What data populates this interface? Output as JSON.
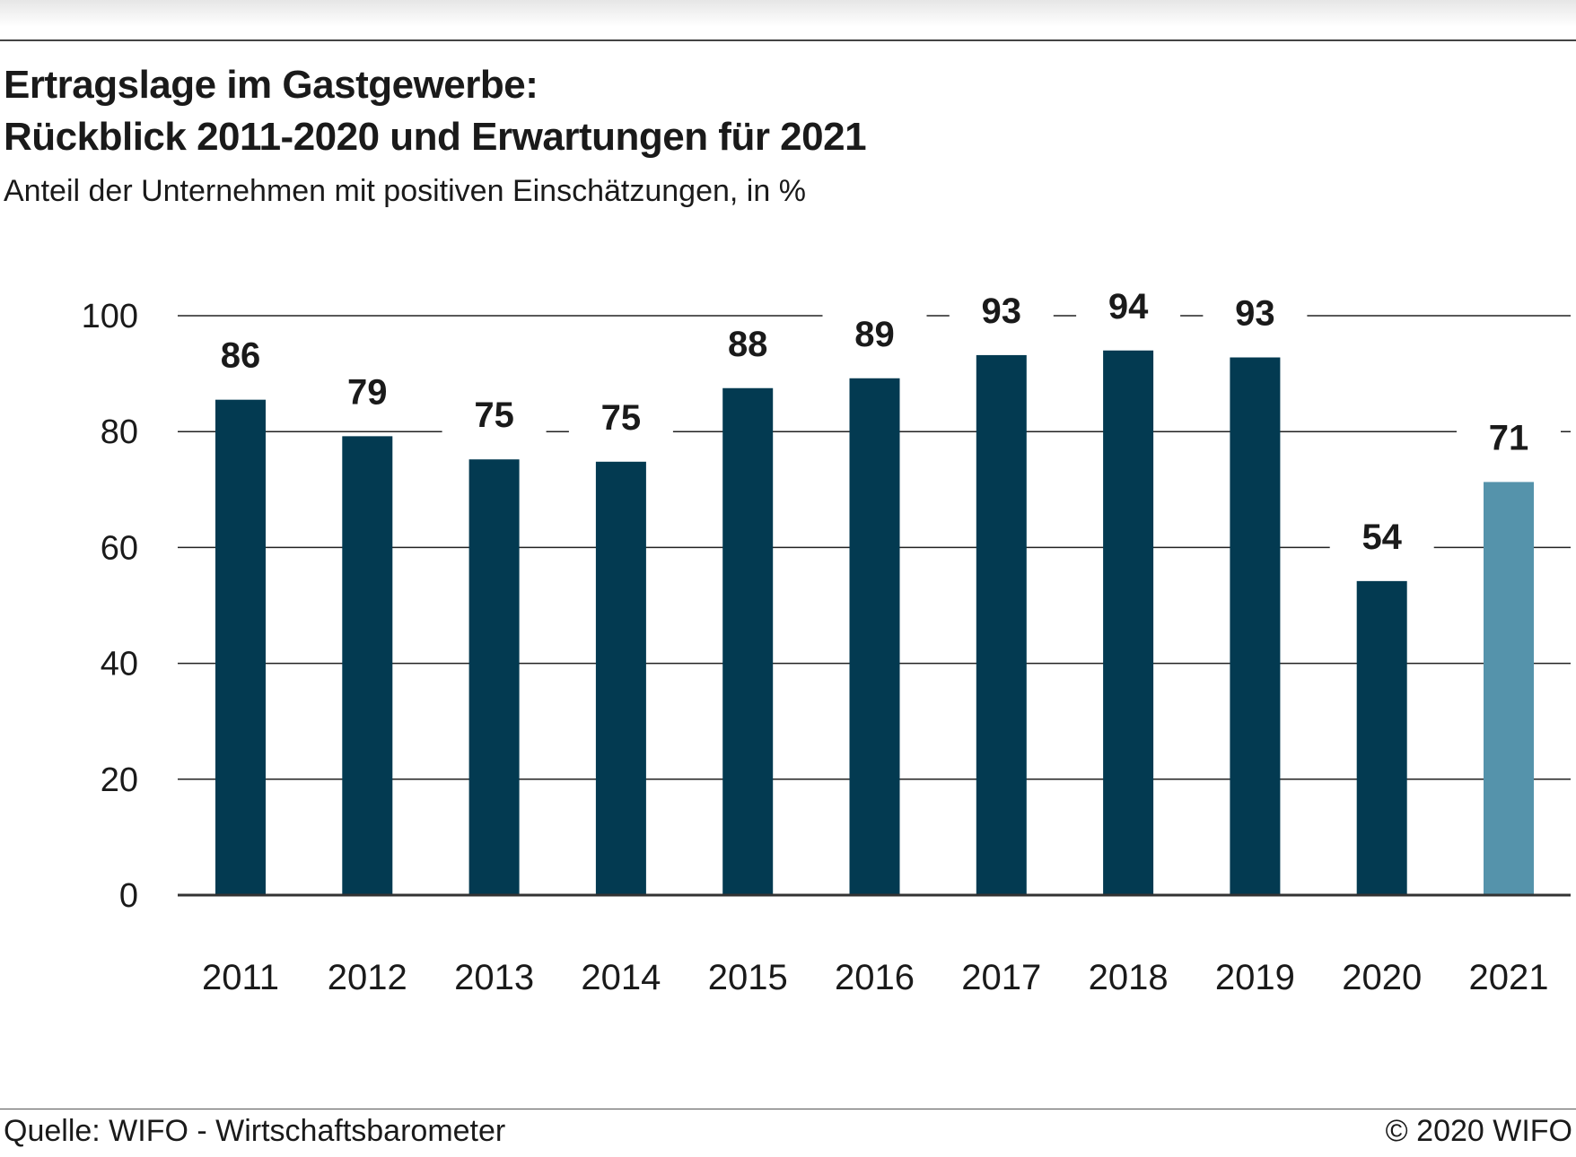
{
  "header": {
    "title_line1": "Ertragslage im Gastgewerbe:",
    "title_line2": "Rückblick 2011-2020 und Erwartungen für 2021",
    "subtitle": "Anteil der Unternehmen mit positiven Einschätzungen, in %"
  },
  "footer": {
    "source": "Quelle: WIFO - Wirtschaftsbarometer",
    "copyright": "© 2020 WIFO"
  },
  "colors": {
    "bar": "#033a51",
    "bar_expectation": "#5593ab",
    "grid": "#222222",
    "label_background": "#ffffff"
  },
  "chart_data": {
    "type": "bar",
    "title": "Ertragslage im Gastgewerbe: Rückblick 2011-2020 und Erwartungen für 2021",
    "subtitle": "Anteil der Unternehmen mit positiven Einschätzungen, in %",
    "categories": [
      "2011",
      "2012",
      "2013",
      "2014",
      "2015",
      "2016",
      "2017",
      "2018",
      "2019",
      "2020",
      "2021"
    ],
    "values": [
      85.5,
      79.2,
      75.2,
      74.8,
      87.5,
      89.2,
      93.2,
      94,
      92.8,
      54.2,
      71.3
    ],
    "data_labels": [
      "86",
      "79",
      "75",
      "75",
      "88",
      "89",
      "93",
      "94",
      "93",
      "54",
      "71"
    ],
    "highlight_category": "2021",
    "ylim": [
      0,
      100
    ],
    "yticks": [
      0,
      20,
      40,
      60,
      80,
      100
    ],
    "grid": true,
    "legend": "none"
  }
}
